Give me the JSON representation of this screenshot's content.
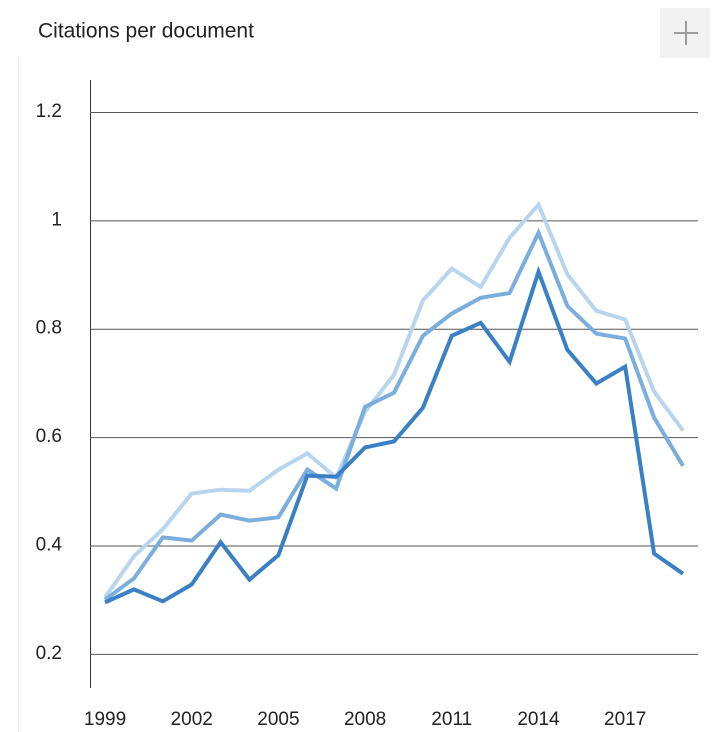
{
  "chart_data": {
    "type": "line",
    "title": "Citations per document",
    "x": [
      1999,
      2000,
      2001,
      2002,
      2003,
      2004,
      2005,
      2006,
      2007,
      2008,
      2009,
      2010,
      2011,
      2012,
      2013,
      2014,
      2015,
      2016,
      2017,
      2018,
      2019
    ],
    "series": [
      {
        "color": "#b8d5ee",
        "values": [
          0.304,
          0.38,
          0.43,
          0.496,
          0.503,
          0.501,
          0.54,
          0.57,
          0.525,
          0.647,
          0.715,
          0.852,
          0.911,
          0.877,
          0.968,
          1.029,
          0.9,
          0.833,
          0.817,
          0.684,
          0.612
        ]
      },
      {
        "color": "#7aaedc",
        "values": [
          0.3,
          0.339,
          0.415,
          0.409,
          0.457,
          0.446,
          0.452,
          0.54,
          0.505,
          0.656,
          0.682,
          0.787,
          0.828,
          0.857,
          0.866,
          0.977,
          0.842,
          0.791,
          0.782,
          0.636,
          0.547
        ]
      },
      {
        "color": "#3a80c4",
        "values": [
          0.295,
          0.319,
          0.297,
          0.328,
          0.406,
          0.337,
          0.382,
          0.529,
          0.527,
          0.581,
          0.592,
          0.654,
          0.787,
          0.811,
          0.739,
          0.905,
          0.761,
          0.699,
          0.73,
          0.385,
          0.348
        ]
      }
    ],
    "xlim": [
      1998.48,
      2019.52
    ],
    "xticks": [
      1999,
      2002,
      2005,
      2008,
      2011,
      2014,
      2017
    ],
    "ylim": [
      0.137,
      1.259
    ],
    "yticks": [
      0.2,
      0.4,
      0.6,
      0.8,
      1,
      1.2
    ],
    "grid": true
  }
}
